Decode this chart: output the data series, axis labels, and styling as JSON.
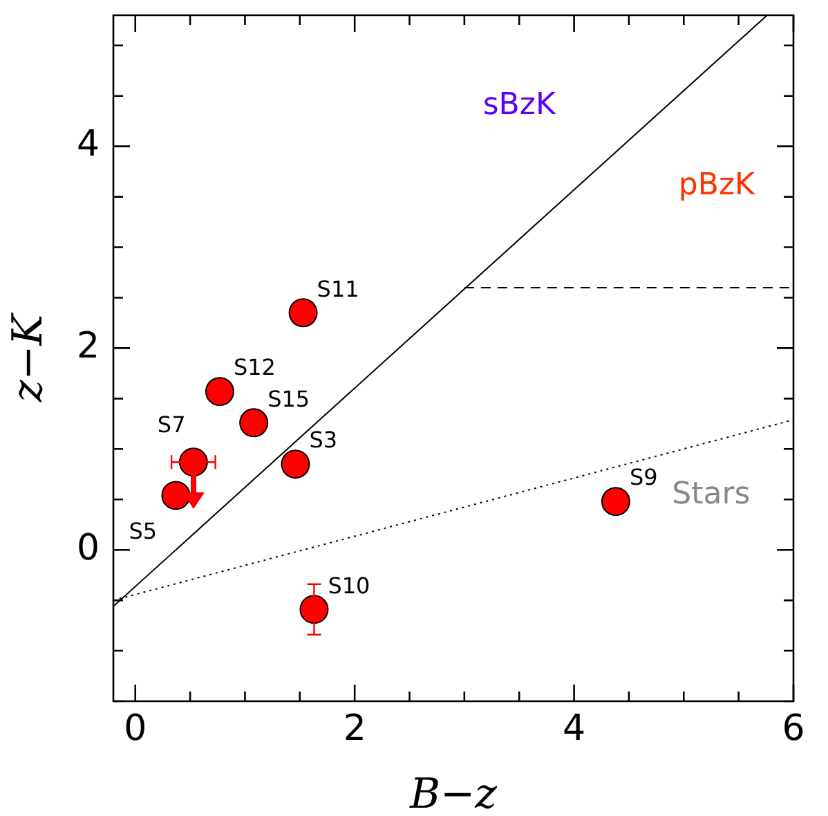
{
  "chart_data": {
    "type": "scatter",
    "xlabel": "B−z",
    "ylabel": "z−K",
    "xlim": [
      -0.2,
      6
    ],
    "ylim": [
      -1.5,
      5.3
    ],
    "xticks": [
      0,
      {
        "value": 0.5,
        "label": null
      },
      {
        "value": 1,
        "label": null
      },
      {
        "value": 1.5,
        "label": null
      },
      2,
      {
        "value": 2.5,
        "label": null
      },
      {
        "value": 3,
        "label": null
      },
      {
        "value": 3.5,
        "label": null
      },
      4,
      {
        "value": 4.5,
        "label": null
      },
      {
        "value": 5,
        "label": null
      },
      {
        "value": 5.5,
        "label": null
      },
      6
    ],
    "yticks": [
      {
        "value": -1.5,
        "label": null
      },
      {
        "value": -1,
        "label": null
      },
      {
        "value": -0.5,
        "label": null
      },
      0,
      {
        "value": 0.5,
        "label": null
      },
      {
        "value": 1,
        "label": null
      },
      {
        "value": 1.5,
        "label": null
      },
      2,
      {
        "value": 2.5,
        "label": null
      },
      {
        "value": 3,
        "label": null
      },
      {
        "value": 3.5,
        "label": null
      },
      4,
      {
        "value": 4.5,
        "label": null
      },
      {
        "value": 5,
        "label": null
      }
    ],
    "grid": false,
    "legend": false,
    "series": [
      {
        "type": "line",
        "color": "#000000",
        "line_style": "solid",
        "marker": "none",
        "x": [
          -0.2,
          5.76
        ],
        "values": [
          -0.56,
          5.3
        ]
      },
      {
        "type": "line",
        "color": "#000000",
        "line_style": "dashed",
        "marker": "none",
        "x": [
          3,
          6
        ],
        "values": [
          2.6,
          2.6
        ]
      },
      {
        "type": "line",
        "color": "#000000",
        "line_style": "dotted",
        "marker": "none",
        "x": [
          -0.2,
          6
        ],
        "values": [
          -0.5,
          1.29
        ]
      },
      {
        "color": "#ff0000",
        "marker": "circle",
        "x": [
          1.53,
          0.77,
          1.08,
          1.46,
          0.53,
          0.37,
          4.38,
          1.63
        ],
        "values": [
          2.35,
          1.57,
          1.26,
          0.85,
          0.87,
          0.54,
          0.48,
          -0.59
        ],
        "errors": [
          null,
          null,
          null,
          null,
          null,
          null,
          null,
          0.25
        ],
        "xerrors": [
          null,
          null,
          null,
          null,
          0.2,
          null,
          null,
          null
        ]
      }
    ],
    "annotations": [
      {
        "text": "S11",
        "x": 1.53,
        "y": 2.35
      },
      {
        "text": "S12",
        "x": 0.77,
        "y": 1.57
      },
      {
        "text": "S15",
        "x": 1.08,
        "y": 1.26
      },
      {
        "text": "S3",
        "x": 1.46,
        "y": 0.85
      },
      {
        "text": "S7",
        "x": 0.53,
        "y": 0.87
      },
      {
        "text": "S5",
        "x": 0.37,
        "y": 0.54
      },
      {
        "text": "S9",
        "x": 4.38,
        "y": 0.48
      },
      {
        "text": "S10",
        "x": 1.63,
        "y": -0.59
      },
      "sBzK",
      "pBzK",
      "Stars"
    ]
  }
}
